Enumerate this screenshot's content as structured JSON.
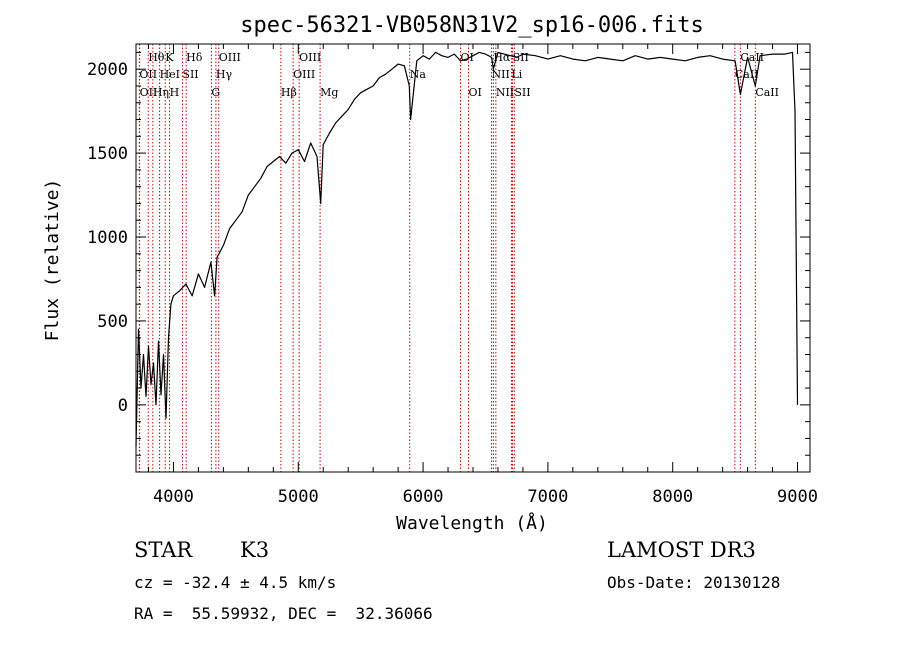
{
  "chart_data": {
    "type": "line",
    "title": "spec-56321-VB058N31V2_sp16-006.fits",
    "xlabel": "Wavelength (Å)",
    "ylabel": "Flux (relative)",
    "xlim": [
      3700,
      9100
    ],
    "ylim": [
      -400,
      2150
    ],
    "xticks": [
      4000,
      5000,
      6000,
      7000,
      8000,
      9000
    ],
    "yticks": [
      0,
      500,
      1000,
      1500,
      2000
    ],
    "grid": false,
    "series": [
      {
        "color": "#000000",
        "x": [
          3700,
          3720,
          3740,
          3760,
          3780,
          3800,
          3820,
          3840,
          3860,
          3880,
          3900,
          3920,
          3940,
          3960,
          3980,
          4000,
          4050,
          4100,
          4150,
          4200,
          4250,
          4300,
          4330,
          4350,
          4400,
          4450,
          4500,
          4550,
          4600,
          4650,
          4700,
          4750,
          4800,
          4850,
          4900,
          4950,
          5000,
          5050,
          5100,
          5150,
          5180,
          5200,
          5250,
          5300,
          5350,
          5400,
          5450,
          5500,
          5550,
          5600,
          5650,
          5700,
          5750,
          5800,
          5850,
          5890,
          5900,
          5950,
          6000,
          6050,
          6100,
          6150,
          6200,
          6250,
          6300,
          6350,
          6400,
          6450,
          6500,
          6550,
          6563,
          6600,
          6650,
          6700,
          6750,
          6800,
          6900,
          7000,
          7100,
          7200,
          7300,
          7400,
          7500,
          7600,
          7700,
          7800,
          7900,
          8000,
          8100,
          8200,
          8300,
          8400,
          8500,
          8542,
          8600,
          8662,
          8700,
          8800,
          8900,
          8960,
          8980,
          9000
        ],
        "y": [
          -250,
          450,
          100,
          300,
          50,
          350,
          120,
          250,
          0,
          380,
          60,
          300,
          -80,
          400,
          600,
          650,
          680,
          720,
          650,
          780,
          700,
          850,
          650,
          880,
          950,
          1050,
          1100,
          1150,
          1250,
          1300,
          1350,
          1420,
          1450,
          1480,
          1440,
          1500,
          1520,
          1450,
          1560,
          1480,
          1200,
          1550,
          1620,
          1680,
          1720,
          1760,
          1820,
          1860,
          1880,
          1900,
          1950,
          1970,
          2000,
          2030,
          2020,
          1900,
          1700,
          2050,
          2080,
          2060,
          2100,
          2080,
          2070,
          2090,
          2050,
          2060,
          2080,
          2100,
          2090,
          2070,
          2000,
          2100,
          2090,
          2080,
          2070,
          2090,
          2080,
          2060,
          2080,
          2060,
          2050,
          2070,
          2060,
          2050,
          2080,
          2060,
          2070,
          2060,
          2050,
          2070,
          2080,
          2060,
          2050,
          1850,
          2070,
          1900,
          2080,
          2090,
          2090,
          2100,
          1750,
          0
        ]
      }
    ],
    "lines": [
      {
        "label": "Hθ",
        "x": 3798,
        "row": 0
      },
      {
        "label": "K",
        "x": 3934,
        "row": 0
      },
      {
        "label": "Hδ",
        "x": 4102,
        "row": 0
      },
      {
        "label": "OIII",
        "x": 4363,
        "row": 0
      },
      {
        "label": "OIII",
        "x": 5007,
        "row": 0
      },
      {
        "label": "OI",
        "x": 6300,
        "row": 0
      },
      {
        "label": "Hα",
        "x": 6563,
        "row": 0
      },
      {
        "label": "SII",
        "x": 6717,
        "row": 0
      },
      {
        "label": "CaII",
        "x": 8542,
        "row": 0
      },
      {
        "label": "OII",
        "x": 3727,
        "row": 1
      },
      {
        "label": "HeI",
        "x": 3889,
        "row": 1
      },
      {
        "label": "SII",
        "x": 4072,
        "row": 1
      },
      {
        "label": "Hγ",
        "x": 4340,
        "row": 1
      },
      {
        "label": "OIII",
        "x": 4959,
        "row": 1
      },
      {
        "label": "Na",
        "x": 5893,
        "row": 1
      },
      {
        "label": "NII",
        "x": 6548,
        "row": 1
      },
      {
        "label": "Li",
        "x": 6708,
        "row": 1
      },
      {
        "label": "CaII",
        "x": 8498,
        "row": 1
      },
      {
        "label": "OII",
        "x": 3729,
        "row": 2
      },
      {
        "label": "Hη",
        "x": 3835,
        "row": 2
      },
      {
        "label": "H",
        "x": 3969,
        "row": 2
      },
      {
        "label": "G",
        "x": 4304,
        "row": 2
      },
      {
        "label": "Hβ",
        "x": 4861,
        "row": 2
      },
      {
        "label": "Mg",
        "x": 5175,
        "row": 2
      },
      {
        "label": "OI",
        "x": 6364,
        "row": 2
      },
      {
        "label": "NII",
        "x": 6583,
        "row": 2
      },
      {
        "label": "SII",
        "x": 6731,
        "row": 2
      },
      {
        "label": "CaII",
        "x": 8662,
        "row": 2
      }
    ]
  },
  "info": {
    "object_class": "STAR",
    "subclass": "K3",
    "survey": "LAMOST DR3",
    "cz": "cz = -32.4 ± 4.5 km/s",
    "obs_date": "Obs-Date: 20130128",
    "coords": "RA =  55.59932, DEC =  32.36066"
  },
  "colors": {
    "spectrum": "#000000",
    "line_markers": "#cc0000"
  }
}
